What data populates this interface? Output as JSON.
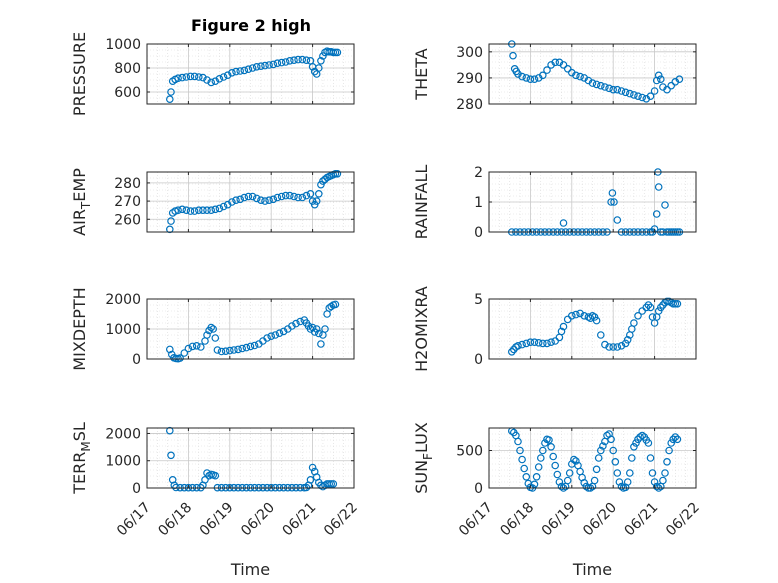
{
  "figure": {
    "title": "Figure 2 high"
  },
  "chart_data": [
    {
      "type": "scatter",
      "id": "pressure",
      "ylabel": "PRESSURE",
      "ylim": [
        500,
        1000
      ],
      "yticks": [
        600,
        800,
        1000
      ],
      "xlim": [
        "06/17",
        "06/22"
      ],
      "grid": true,
      "marker": "circle-open",
      "color": "#0072BD",
      "series": [
        {
          "x": [
            0.55,
            0.58,
            0.62,
            0.68,
            0.75,
            0.85,
            0.95,
            1.05,
            1.15,
            1.25,
            1.35,
            1.45,
            1.55,
            1.65,
            1.75,
            1.85,
            1.95,
            2.05,
            2.15,
            2.25,
            2.35,
            2.45,
            2.55,
            2.65,
            2.75,
            2.85,
            2.95,
            3.05,
            3.15,
            3.25,
            3.35,
            3.45,
            3.55,
            3.65,
            3.75,
            3.85,
            3.95,
            4.0,
            4.05,
            4.1,
            4.15,
            4.2,
            4.25,
            4.3,
            4.35,
            4.4,
            4.45,
            4.5,
            4.55,
            4.6
          ],
          "y": [
            540,
            600,
            690,
            705,
            715,
            720,
            725,
            730,
            730,
            725,
            720,
            700,
            680,
            690,
            710,
            725,
            740,
            760,
            770,
            775,
            780,
            790,
            800,
            810,
            815,
            820,
            825,
            830,
            840,
            845,
            850,
            860,
            865,
            870,
            870,
            865,
            860,
            810,
            770,
            750,
            800,
            860,
            900,
            930,
            940,
            935,
            935,
            930,
            930,
            930
          ]
        }
      ]
    },
    {
      "type": "scatter",
      "id": "theta",
      "ylabel": "THETA",
      "ylim": [
        280,
        303
      ],
      "yticks": [
        280,
        290,
        300
      ],
      "xlim": [
        "06/17",
        "06/22"
      ],
      "grid": true,
      "marker": "circle-open",
      "color": "#0072BD",
      "series": [
        {
          "x": [
            0.55,
            0.58,
            0.62,
            0.66,
            0.7,
            0.8,
            0.9,
            1.0,
            1.1,
            1.2,
            1.3,
            1.4,
            1.5,
            1.6,
            1.7,
            1.8,
            1.9,
            2.0,
            2.1,
            2.2,
            2.3,
            2.4,
            2.5,
            2.6,
            2.7,
            2.8,
            2.9,
            3.0,
            3.1,
            3.2,
            3.3,
            3.4,
            3.5,
            3.6,
            3.7,
            3.8,
            3.9,
            4.0,
            4.05,
            4.1,
            4.15,
            4.2,
            4.3,
            4.4,
            4.5,
            4.6
          ],
          "y": [
            303,
            298.5,
            293.5,
            292.5,
            291.5,
            290.5,
            290,
            289.5,
            289.5,
            290,
            291,
            293,
            295,
            296,
            296,
            295,
            293.5,
            292,
            291,
            290.5,
            290,
            289,
            288,
            287.5,
            287,
            286.5,
            286,
            285.5,
            285.5,
            285,
            284.5,
            284,
            283.5,
            283,
            282.5,
            282,
            283,
            285,
            289,
            291,
            289.5,
            286.5,
            285.5,
            287,
            288.5,
            289.5
          ]
        }
      ]
    },
    {
      "type": "scatter",
      "id": "air-temp",
      "ylabel": "AIR",
      "ylabel_sub": "T",
      "ylabel_tail": "EMP",
      "ylim": [
        253,
        286
      ],
      "yticks": [
        260,
        270,
        280
      ],
      "xlim": [
        "06/17",
        "06/22"
      ],
      "grid": true,
      "marker": "circle-open",
      "color": "#0072BD",
      "series": [
        {
          "x": [
            0.55,
            0.58,
            0.62,
            0.68,
            0.75,
            0.85,
            0.95,
            1.05,
            1.15,
            1.25,
            1.35,
            1.45,
            1.55,
            1.65,
            1.75,
            1.85,
            1.95,
            2.05,
            2.15,
            2.25,
            2.35,
            2.45,
            2.55,
            2.65,
            2.75,
            2.85,
            2.95,
            3.05,
            3.15,
            3.25,
            3.35,
            3.45,
            3.55,
            3.65,
            3.75,
            3.85,
            3.95,
            4.0,
            4.05,
            4.1,
            4.15,
            4.2,
            4.25,
            4.3,
            4.35,
            4.4,
            4.45,
            4.5,
            4.55,
            4.6
          ],
          "y": [
            254.5,
            259,
            263.5,
            264.5,
            265,
            265.5,
            265,
            264.5,
            264.5,
            265,
            265,
            265,
            265,
            265.5,
            266,
            267,
            268,
            269.5,
            270.5,
            271,
            272,
            272.5,
            272.5,
            271.5,
            270.5,
            270,
            270.5,
            271,
            272,
            272.5,
            273,
            273,
            272.5,
            272,
            272,
            273,
            274,
            270,
            268,
            270,
            274,
            279,
            281,
            282,
            283,
            283.5,
            284,
            284.5,
            285,
            285
          ]
        }
      ]
    },
    {
      "type": "scatter",
      "id": "rainfall",
      "ylabel": "RAINFALL",
      "ylim": [
        0,
        2
      ],
      "yticks": [
        0,
        1,
        2
      ],
      "xlim": [
        "06/17",
        "06/22"
      ],
      "grid": true,
      "marker": "circle-open",
      "color": "#0072BD",
      "series": [
        {
          "x": [
            0.55,
            0.65,
            0.75,
            0.85,
            0.95,
            1.05,
            1.15,
            1.25,
            1.35,
            1.45,
            1.55,
            1.65,
            1.75,
            1.8,
            1.85,
            1.95,
            2.05,
            2.15,
            2.25,
            2.35,
            2.45,
            2.55,
            2.65,
            2.75,
            2.85,
            2.95,
            2.98,
            3.02,
            3.1,
            3.2,
            3.3,
            3.4,
            3.5,
            3.6,
            3.7,
            3.8,
            3.9,
            3.95,
            4.0,
            4.05,
            4.08,
            4.1,
            4.15,
            4.2,
            4.25,
            4.3,
            4.35,
            4.4,
            4.45,
            4.5,
            4.55,
            4.6
          ],
          "y": [
            0,
            0,
            0,
            0,
            0,
            0,
            0,
            0,
            0,
            0,
            0,
            0,
            0,
            0.3,
            0,
            0,
            0,
            0,
            0,
            0,
            0,
            0,
            0,
            0,
            0,
            1.0,
            1.3,
            1.0,
            0.4,
            0,
            0,
            0,
            0,
            0,
            0,
            0,
            0,
            0,
            0.1,
            0.6,
            2.0,
            1.5,
            0,
            0,
            0.9,
            0,
            0,
            0,
            0,
            0,
            0,
            0
          ]
        }
      ]
    },
    {
      "type": "scatter",
      "id": "mixdepth",
      "ylabel": "MIXDEPTH",
      "ylim": [
        0,
        2000
      ],
      "yticks": [
        0,
        1000,
        2000
      ],
      "xlim": [
        "06/17",
        "06/22"
      ],
      "grid": true,
      "marker": "circle-open",
      "color": "#0072BD",
      "series": [
        {
          "x": [
            0.55,
            0.6,
            0.65,
            0.7,
            0.75,
            0.8,
            0.9,
            1.0,
            1.1,
            1.2,
            1.3,
            1.4,
            1.45,
            1.5,
            1.55,
            1.6,
            1.65,
            1.7,
            1.8,
            1.9,
            2.0,
            2.1,
            2.2,
            2.3,
            2.4,
            2.5,
            2.6,
            2.7,
            2.8,
            2.9,
            3.0,
            3.1,
            3.2,
            3.3,
            3.4,
            3.5,
            3.6,
            3.7,
            3.8,
            3.85,
            3.9,
            3.95,
            4.0,
            4.05,
            4.1,
            4.15,
            4.2,
            4.25,
            4.3,
            4.35,
            4.4,
            4.45,
            4.5,
            4.55
          ],
          "y": [
            320,
            150,
            40,
            20,
            10,
            30,
            200,
            350,
            420,
            440,
            400,
            600,
            800,
            950,
            1050,
            1000,
            700,
            300,
            250,
            260,
            280,
            300,
            320,
            350,
            380,
            420,
            450,
            500,
            600,
            700,
            760,
            800,
            860,
            920,
            1000,
            1100,
            1180,
            1250,
            1300,
            1200,
            1100,
            1000,
            1050,
            900,
            1000,
            850,
            500,
            800,
            1000,
            1500,
            1700,
            1750,
            1800,
            1820
          ]
        }
      ]
    },
    {
      "type": "scatter",
      "id": "h2omixra",
      "ylabel": "H2OMIXRA",
      "ylim": [
        0,
        5
      ],
      "yticks": [
        0,
        5
      ],
      "xlim": [
        "06/17",
        "06/22"
      ],
      "grid": true,
      "marker": "circle-open",
      "color": "#0072BD",
      "series": [
        {
          "x": [
            0.55,
            0.6,
            0.65,
            0.7,
            0.8,
            0.9,
            1.0,
            1.1,
            1.2,
            1.3,
            1.4,
            1.5,
            1.6,
            1.7,
            1.75,
            1.8,
            1.9,
            2.0,
            2.1,
            2.2,
            2.3,
            2.4,
            2.45,
            2.5,
            2.55,
            2.6,
            2.7,
            2.8,
            2.9,
            3.0,
            3.1,
            3.2,
            3.3,
            3.35,
            3.4,
            3.45,
            3.5,
            3.6,
            3.7,
            3.8,
            3.85,
            3.9,
            3.95,
            4.0,
            4.05,
            4.1,
            4.15,
            4.2,
            4.25,
            4.3,
            4.35,
            4.4,
            4.45,
            4.5,
            4.55
          ],
          "y": [
            0.6,
            0.8,
            1.0,
            1.1,
            1.2,
            1.3,
            1.4,
            1.4,
            1.35,
            1.3,
            1.3,
            1.4,
            1.5,
            1.8,
            2.3,
            2.7,
            3.3,
            3.6,
            3.7,
            3.8,
            3.6,
            3.5,
            3.4,
            3.6,
            3.5,
            3.2,
            2.0,
            1.2,
            1.0,
            1.0,
            1.0,
            1.1,
            1.3,
            1.6,
            2.0,
            2.5,
            3.0,
            3.6,
            4.0,
            4.3,
            4.5,
            4.3,
            3.5,
            3.0,
            3.5,
            4.0,
            4.3,
            4.5,
            4.7,
            4.8,
            4.8,
            4.7,
            4.6,
            4.6,
            4.6
          ]
        }
      ]
    },
    {
      "type": "scatter",
      "id": "terr-msl",
      "ylabel": "TERR",
      "ylabel_sub": "M",
      "ylabel_tail": "SL",
      "ylim": [
        0,
        2200
      ],
      "yticks": [
        0,
        1000,
        2000
      ],
      "xlim": [
        "06/17",
        "06/22"
      ],
      "xticks": [
        "06/17",
        "06/18",
        "06/19",
        "06/20",
        "06/21",
        "06/22"
      ],
      "xlabel": "Time",
      "grid": true,
      "marker": "circle-open",
      "color": "#0072BD",
      "series": [
        {
          "x": [
            0.55,
            0.58,
            0.62,
            0.66,
            0.7,
            0.8,
            0.9,
            1.0,
            1.1,
            1.2,
            1.3,
            1.35,
            1.4,
            1.45,
            1.5,
            1.55,
            1.6,
            1.65,
            1.7,
            1.8,
            1.9,
            2.0,
            2.1,
            2.2,
            2.3,
            2.4,
            2.5,
            2.6,
            2.7,
            2.8,
            2.9,
            3.0,
            3.1,
            3.2,
            3.3,
            3.4,
            3.5,
            3.6,
            3.7,
            3.8,
            3.85,
            3.9,
            3.95,
            4.0,
            4.05,
            4.1,
            4.15,
            4.2,
            4.25,
            4.3,
            4.35,
            4.4,
            4.45,
            4.5
          ],
          "y": [
            2100,
            1200,
            300,
            100,
            20,
            10,
            10,
            10,
            10,
            10,
            10,
            100,
            300,
            550,
            450,
            500,
            480,
            450,
            10,
            10,
            10,
            10,
            10,
            10,
            10,
            10,
            10,
            10,
            10,
            10,
            10,
            10,
            10,
            10,
            10,
            10,
            10,
            10,
            10,
            10,
            20,
            100,
            300,
            750,
            600,
            400,
            200,
            100,
            50,
            100,
            150,
            150,
            150,
            150
          ]
        }
      ]
    },
    {
      "type": "scatter",
      "id": "sun-flux",
      "ylabel": "SUN",
      "ylabel_sub": "F",
      "ylabel_tail": "LUX",
      "ylim": [
        0,
        800
      ],
      "yticks": [
        0,
        500
      ],
      "xlim": [
        "06/17",
        "06/22"
      ],
      "xticks": [
        "06/17",
        "06/18",
        "06/19",
        "06/20",
        "06/21",
        "06/22"
      ],
      "xlabel": "Time",
      "grid": true,
      "marker": "circle-open",
      "color": "#0072BD",
      "series": [
        {
          "x": [
            0.55,
            0.6,
            0.65,
            0.7,
            0.75,
            0.8,
            0.85,
            0.9,
            0.95,
            1.0,
            1.05,
            1.1,
            1.15,
            1.2,
            1.25,
            1.3,
            1.35,
            1.4,
            1.45,
            1.5,
            1.55,
            1.6,
            1.65,
            1.7,
            1.75,
            1.8,
            1.85,
            1.9,
            1.95,
            2.0,
            2.05,
            2.1,
            2.15,
            2.2,
            2.25,
            2.3,
            2.35,
            2.4,
            2.45,
            2.5,
            2.55,
            2.6,
            2.65,
            2.7,
            2.75,
            2.8,
            2.85,
            2.9,
            2.95,
            3.0,
            3.05,
            3.1,
            3.15,
            3.2,
            3.25,
            3.3,
            3.35,
            3.4,
            3.45,
            3.5,
            3.55,
            3.6,
            3.65,
            3.7,
            3.75,
            3.8,
            3.85,
            3.9,
            3.95,
            4.0,
            4.05,
            4.1,
            4.15,
            4.2,
            4.25,
            4.3,
            4.35,
            4.4,
            4.45,
            4.5,
            4.55
          ],
          "y": [
            760,
            740,
            700,
            620,
            500,
            380,
            260,
            150,
            60,
            10,
            0,
            50,
            150,
            280,
            400,
            500,
            600,
            650,
            640,
            550,
            420,
            300,
            180,
            80,
            20,
            0,
            20,
            100,
            200,
            320,
            380,
            360,
            300,
            220,
            140,
            70,
            20,
            0,
            0,
            20,
            100,
            250,
            400,
            500,
            560,
            620,
            700,
            720,
            650,
            500,
            350,
            200,
            80,
            20,
            0,
            10,
            80,
            200,
            400,
            550,
            600,
            650,
            680,
            700,
            680,
            640,
            600,
            400,
            200,
            80,
            20,
            0,
            20,
            100,
            200,
            350,
            500,
            600,
            650,
            680,
            650
          ]
        }
      ]
    }
  ]
}
